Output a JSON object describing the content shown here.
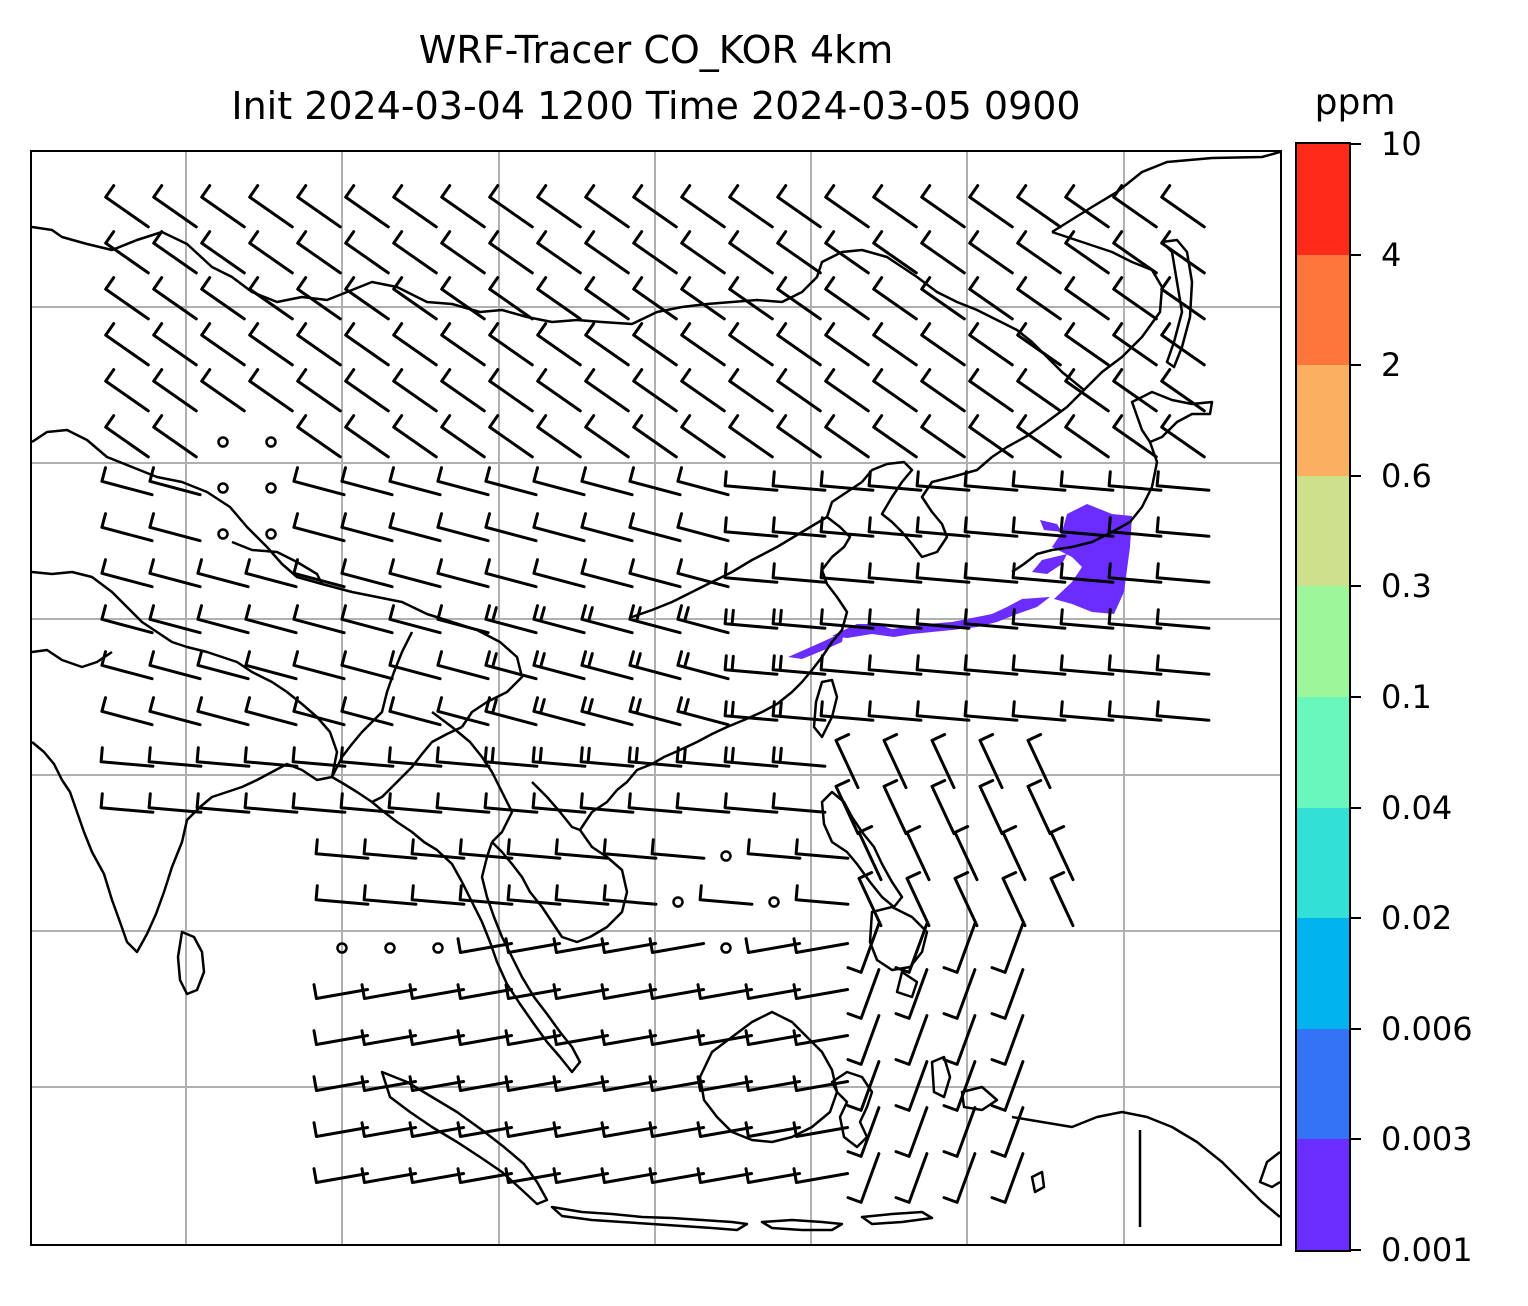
{
  "title": {
    "line1": "WRF-Tracer CO_KOR 4km",
    "line2": "Init 2024-03-04 1200 Time 2024-03-05 0900"
  },
  "map": {
    "type": "tracer concentration with wind barbs",
    "gridlines": true,
    "gridline_color": "#b0b0b0",
    "coastline_color": "#000000",
    "tracer_color": "#6a2cff",
    "wind_barb_color": "#000000"
  },
  "colorbar": {
    "unit": "ppm",
    "levels": [
      "0.001",
      "0.003",
      "0.006",
      "0.02",
      "0.04",
      "0.1",
      "0.3",
      "0.6",
      "2",
      "4",
      "10"
    ],
    "colors": [
      "#6a2cff",
      "#3473f6",
      "#00b2ee",
      "#32e0d6",
      "#69f7bd",
      "#9df79a",
      "#cfe08c",
      "#fbb060",
      "#ff763a",
      "#ff2a1a"
    ]
  }
}
